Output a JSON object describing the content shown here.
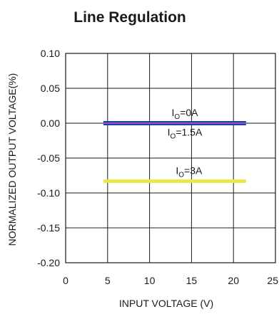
{
  "chart_data": {
    "type": "line",
    "title": "Line Regulation",
    "xlabel": "INPUT VOLTAGE (V)",
    "ylabel": "NORMALIZED OUTPUT VOLTAGE(%)",
    "xlim": [
      0,
      25
    ],
    "ylim": [
      -0.2,
      0.1
    ],
    "x_ticks": [
      0,
      5,
      10,
      15,
      20,
      25
    ],
    "x_tick_labels": [
      "0",
      "5",
      "10",
      "15",
      "20",
      "25"
    ],
    "y_ticks": [
      0.1,
      0.05,
      0.0,
      -0.05,
      -0.1,
      -0.15,
      -0.2
    ],
    "y_tick_labels": [
      "0.10",
      "0.05",
      "0.00",
      "-0.05",
      "-0.10",
      "-0.15",
      "-0.20"
    ],
    "grid": true,
    "series": [
      {
        "name": "IO=0A",
        "label_main": "I",
        "label_sub": "O",
        "label_rest": "=0A",
        "color": "#1f3fa8",
        "x": [
          4.5,
          21.5
        ],
        "y": [
          0.0,
          0.0
        ]
      },
      {
        "name": "IO=1.5A",
        "label_main": "I",
        "label_sub": "O",
        "label_rest": "=1.5A",
        "color": "#9a4fc0",
        "x": [
          4.5,
          21.5
        ],
        "y": [
          0.0,
          0.0
        ]
      },
      {
        "name": "IO=3A",
        "label_main": "I",
        "label_sub": "O",
        "label_rest": "=3A",
        "color": "#e8e84a",
        "x": [
          4.5,
          21.5
        ],
        "y": [
          -0.083,
          -0.083
        ]
      }
    ],
    "annotations": [
      {
        "series": 0,
        "x": 14.2,
        "y": 0.01
      },
      {
        "series": 1,
        "x": 14.2,
        "y": -0.018
      },
      {
        "series": 2,
        "x": 14.7,
        "y": -0.073
      }
    ]
  }
}
